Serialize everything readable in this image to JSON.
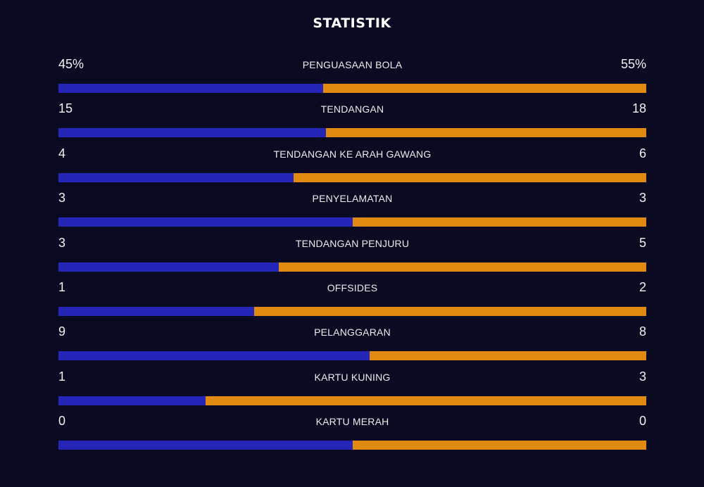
{
  "title": "STATISTIK",
  "colors": {
    "background": "#0a0a22",
    "home": "#2525b8",
    "away": "#e08a12"
  },
  "stats": [
    {
      "label": "PENGUASAAN BOLA",
      "home": "45%",
      "away": "55%",
      "home_share": 0.45
    },
    {
      "label": "TENDANGAN",
      "home": "15",
      "away": "18",
      "home_share": 0.4545
    },
    {
      "label": "TENDANGAN KE ARAH GAWANG",
      "home": "4",
      "away": "6",
      "home_share": 0.4
    },
    {
      "label": "PENYELAMATAN",
      "home": "3",
      "away": "3",
      "home_share": 0.5
    },
    {
      "label": "TENDANGAN PENJURU",
      "home": "3",
      "away": "5",
      "home_share": 0.375
    },
    {
      "label": "OFFSIDES",
      "home": "1",
      "away": "2",
      "home_share": 0.3333
    },
    {
      "label": "PELANGGARAN",
      "home": "9",
      "away": "8",
      "home_share": 0.5294
    },
    {
      "label": "KARTU KUNING",
      "home": "1",
      "away": "3",
      "home_share": 0.25
    },
    {
      "label": "KARTU MERAH",
      "home": "0",
      "away": "0",
      "home_share": 0.5
    }
  ]
}
